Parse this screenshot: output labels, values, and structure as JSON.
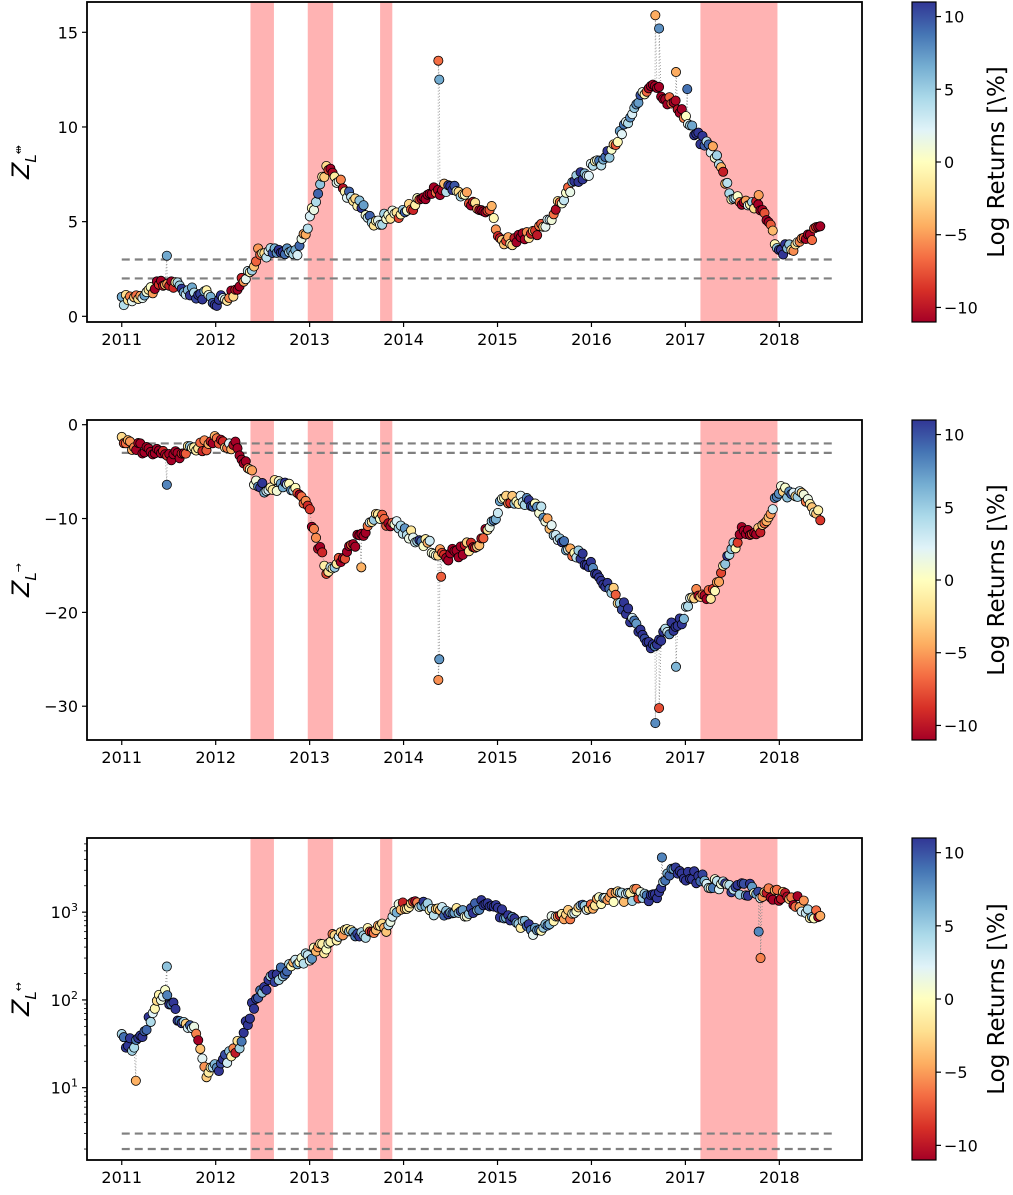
{
  "colormap": {
    "name": "RdYlBu",
    "stops": [
      "#a50026",
      "#d73027",
      "#f46d43",
      "#fdae61",
      "#fee090",
      "#ffffbf",
      "#e0f3f8",
      "#abd9e9",
      "#74add1",
      "#4575b4",
      "#313695"
    ],
    "range": [
      -11,
      11
    ]
  },
  "shade_color": "#ffb3b3",
  "threshold_line_color": "#808080",
  "chart_data": [
    {
      "type": "scatter",
      "panel": "top",
      "ylabel_main": "Z",
      "ylabel_sub": "L",
      "ylabel_arrow": "⇹",
      "y_scale": "linear",
      "ylim": [
        -0.3,
        16.6
      ],
      "xlim": [
        2010.63,
        2018.88
      ],
      "x_ticks": [
        2011,
        2012,
        2013,
        2014,
        2015,
        2016,
        2017,
        2018
      ],
      "x_tick_labels": [
        "2011",
        "2012",
        "2013",
        "2014",
        "2015",
        "2016",
        "2017",
        "2018"
      ],
      "y_ticks": [
        0,
        5,
        10,
        15
      ],
      "y_tick_labels": [
        "0",
        "5",
        "10",
        "15"
      ],
      "thresholds": [
        2,
        3
      ],
      "shaded_intervals": [
        [
          2012.37,
          2012.62
        ],
        [
          2012.98,
          2013.25
        ],
        [
          2013.75,
          2013.88
        ],
        [
          2017.16,
          2017.98
        ]
      ],
      "colorbar_label": "Log Returns [\\%]",
      "colorbar_ticks": [
        10,
        5,
        0,
        -5,
        -10
      ],
      "colorbar_tick_labels": [
        "10",
        "5",
        "0",
        "−5",
        "−10"
      ],
      "anchors": [
        [
          2011.0,
          0.8
        ],
        [
          2011.3,
          1.4
        ],
        [
          2011.5,
          1.8
        ],
        [
          2011.7,
          1.3
        ],
        [
          2011.9,
          1.1
        ],
        [
          2012.0,
          0.8
        ],
        [
          2012.2,
          1.3
        ],
        [
          2012.3,
          1.9
        ],
        [
          2012.45,
          3.3
        ],
        [
          2012.6,
          3.4
        ],
        [
          2012.85,
          3.3
        ],
        [
          2013.0,
          5.0
        ],
        [
          2013.1,
          6.8
        ],
        [
          2013.2,
          8.0
        ],
        [
          2013.4,
          6.5
        ],
        [
          2013.6,
          5.6
        ],
        [
          2013.7,
          4.8
        ],
        [
          2013.85,
          5.4
        ],
        [
          2014.0,
          5.5
        ],
        [
          2014.2,
          6.3
        ],
        [
          2014.45,
          6.8
        ],
        [
          2014.6,
          6.5
        ],
        [
          2014.8,
          5.9
        ],
        [
          2014.95,
          5.6
        ],
        [
          2015.0,
          4.1
        ],
        [
          2015.2,
          4.0
        ],
        [
          2015.4,
          4.3
        ],
        [
          2015.6,
          5.5
        ],
        [
          2015.8,
          7.0
        ],
        [
          2016.0,
          7.8
        ],
        [
          2016.2,
          8.6
        ],
        [
          2016.35,
          10.0
        ],
        [
          2016.5,
          11.2
        ],
        [
          2016.65,
          12.5
        ],
        [
          2016.8,
          11.5
        ],
        [
          2016.95,
          11.0
        ],
        [
          2017.1,
          9.6
        ],
        [
          2017.3,
          8.8
        ],
        [
          2017.5,
          6.3
        ],
        [
          2017.7,
          6.0
        ],
        [
          2017.85,
          5.5
        ],
        [
          2018.0,
          3.4
        ],
        [
          2018.2,
          3.8
        ],
        [
          2018.35,
          4.3
        ],
        [
          2018.5,
          5.2
        ]
      ],
      "spikes": [
        [
          2011.48,
          3.2
        ],
        [
          2014.37,
          13.5
        ],
        [
          2014.38,
          12.5
        ],
        [
          2016.68,
          15.9
        ],
        [
          2016.72,
          15.2
        ],
        [
          2016.9,
          12.9
        ],
        [
          2017.02,
          12.0
        ],
        [
          2017.78,
          6.4
        ]
      ]
    },
    {
      "type": "scatter",
      "panel": "middle",
      "ylabel_main": "Z",
      "ylabel_sub": "L",
      "ylabel_arrow": "→",
      "y_scale": "linear",
      "ylim": [
        -33.6,
        0.5
      ],
      "xlim": [
        2010.63,
        2018.88
      ],
      "x_ticks": [
        2011,
        2012,
        2013,
        2014,
        2015,
        2016,
        2017,
        2018
      ],
      "x_tick_labels": [
        "2011",
        "2012",
        "2013",
        "2014",
        "2015",
        "2016",
        "2017",
        "2018"
      ],
      "y_ticks": [
        0,
        -10,
        -20,
        -30
      ],
      "y_tick_labels": [
        "0",
        "−10",
        "−20",
        "−30"
      ],
      "thresholds": [
        -2,
        -3
      ],
      "shaded_intervals": [
        [
          2012.37,
          2012.62
        ],
        [
          2012.98,
          2013.25
        ],
        [
          2013.75,
          2013.88
        ],
        [
          2017.16,
          2017.98
        ]
      ],
      "colorbar_label": "Log Returns [\\%]",
      "colorbar_ticks": [
        10,
        5,
        0,
        -5,
        -10
      ],
      "colorbar_tick_labels": [
        "10",
        "5",
        "0",
        "−5",
        "−10"
      ],
      "anchors": [
        [
          2011.0,
          -1.8
        ],
        [
          2011.3,
          -2.8
        ],
        [
          2011.5,
          -3.4
        ],
        [
          2011.7,
          -2.8
        ],
        [
          2011.9,
          -2.2
        ],
        [
          2012.0,
          -1.7
        ],
        [
          2012.2,
          -2.2
        ],
        [
          2012.3,
          -3.6
        ],
        [
          2012.45,
          -6.8
        ],
        [
          2012.6,
          -6.5
        ],
        [
          2012.85,
          -6.5
        ],
        [
          2013.0,
          -9.5
        ],
        [
          2013.1,
          -13.0
        ],
        [
          2013.2,
          -16.0
        ],
        [
          2013.4,
          -13.5
        ],
        [
          2013.6,
          -11.0
        ],
        [
          2013.7,
          -9.8
        ],
        [
          2013.85,
          -10.5
        ],
        [
          2014.0,
          -11.2
        ],
        [
          2014.2,
          -12.5
        ],
        [
          2014.45,
          -14.0
        ],
        [
          2014.6,
          -13.5
        ],
        [
          2014.8,
          -12.5
        ],
        [
          2014.95,
          -10.5
        ],
        [
          2015.05,
          -8.0
        ],
        [
          2015.2,
          -8.0
        ],
        [
          2015.4,
          -8.2
        ],
        [
          2015.6,
          -11.5
        ],
        [
          2015.8,
          -13.5
        ],
        [
          2016.0,
          -15.0
        ],
        [
          2016.2,
          -17.5
        ],
        [
          2016.35,
          -19.5
        ],
        [
          2016.5,
          -22.0
        ],
        [
          2016.65,
          -24.0
        ],
        [
          2016.8,
          -22.0
        ],
        [
          2016.95,
          -21.0
        ],
        [
          2017.1,
          -18.0
        ],
        [
          2017.3,
          -18.0
        ],
        [
          2017.45,
          -14.0
        ],
        [
          2017.6,
          -11.5
        ],
        [
          2017.85,
          -11.0
        ],
        [
          2018.0,
          -7.0
        ],
        [
          2018.2,
          -7.5
        ],
        [
          2018.35,
          -8.5
        ],
        [
          2018.5,
          -11.0
        ]
      ],
      "spikes": [
        [
          2011.48,
          -6.4
        ],
        [
          2014.37,
          -27.2
        ],
        [
          2014.38,
          -25.0
        ],
        [
          2014.4,
          -16.2
        ],
        [
          2016.68,
          -31.8
        ],
        [
          2016.72,
          -30.2
        ],
        [
          2016.9,
          -25.8
        ],
        [
          2013.55,
          -15.2
        ]
      ]
    },
    {
      "type": "scatter",
      "panel": "bottom",
      "ylabel_main": "Z",
      "ylabel_sub": "L",
      "ylabel_arrow": "↔",
      "y_scale": "log",
      "ylim": [
        1.5,
        7000
      ],
      "xlim": [
        2010.63,
        2018.88
      ],
      "x_ticks": [
        2011,
        2012,
        2013,
        2014,
        2015,
        2016,
        2017,
        2018
      ],
      "x_tick_labels": [
        "2011",
        "2012",
        "2013",
        "2014",
        "2015",
        "2016",
        "2017",
        "2018"
      ],
      "y_ticks": [
        10,
        100,
        1000
      ],
      "y_tick_labels": [
        "10^1",
        "10^2",
        "10^3"
      ],
      "thresholds": [
        2,
        3
      ],
      "shaded_intervals": [
        [
          2012.37,
          2012.62
        ],
        [
          2012.98,
          2013.25
        ],
        [
          2013.75,
          2013.88
        ],
        [
          2017.16,
          2017.98
        ]
      ],
      "colorbar_label": "Log Returns [\\%]",
      "colorbar_ticks": [
        10,
        5,
        0,
        -5,
        -10
      ],
      "colorbar_tick_labels": [
        "10",
        "5",
        "0",
        "−5",
        "−10"
      ],
      "anchors": [
        [
          2011.0,
          35
        ],
        [
          2011.15,
          30
        ],
        [
          2011.3,
          60
        ],
        [
          2011.45,
          120
        ],
        [
          2011.6,
          60
        ],
        [
          2011.75,
          50
        ],
        [
          2011.9,
          15
        ],
        [
          2012.05,
          18
        ],
        [
          2012.2,
          25
        ],
        [
          2012.3,
          40
        ],
        [
          2012.45,
          110
        ],
        [
          2012.6,
          170
        ],
        [
          2012.85,
          260
        ],
        [
          2013.0,
          330
        ],
        [
          2013.15,
          380
        ],
        [
          2013.3,
          560
        ],
        [
          2013.5,
          560
        ],
        [
          2013.7,
          580
        ],
        [
          2013.85,
          750
        ],
        [
          2014.0,
          1300
        ],
        [
          2014.3,
          1050
        ],
        [
          2014.6,
          1000
        ],
        [
          2014.85,
          1200
        ],
        [
          2015.0,
          1000
        ],
        [
          2015.2,
          800
        ],
        [
          2015.4,
          600
        ],
        [
          2015.6,
          900
        ],
        [
          2015.8,
          1000
        ],
        [
          2016.0,
          1200
        ],
        [
          2016.2,
          1400
        ],
        [
          2016.45,
          1600
        ],
        [
          2016.7,
          1400
        ],
        [
          2016.85,
          3000
        ],
        [
          2017.0,
          2600
        ],
        [
          2017.2,
          2300
        ],
        [
          2017.45,
          2000
        ],
        [
          2017.65,
          1800
        ],
        [
          2017.85,
          1700
        ],
        [
          2018.0,
          1600
        ],
        [
          2018.2,
          1300
        ],
        [
          2018.35,
          900
        ],
        [
          2018.5,
          1100
        ]
      ],
      "spikes": [
        [
          2011.48,
          240
        ],
        [
          2011.15,
          12
        ],
        [
          2016.75,
          4200
        ],
        [
          2017.8,
          300
        ],
        [
          2017.78,
          600
        ]
      ]
    }
  ]
}
